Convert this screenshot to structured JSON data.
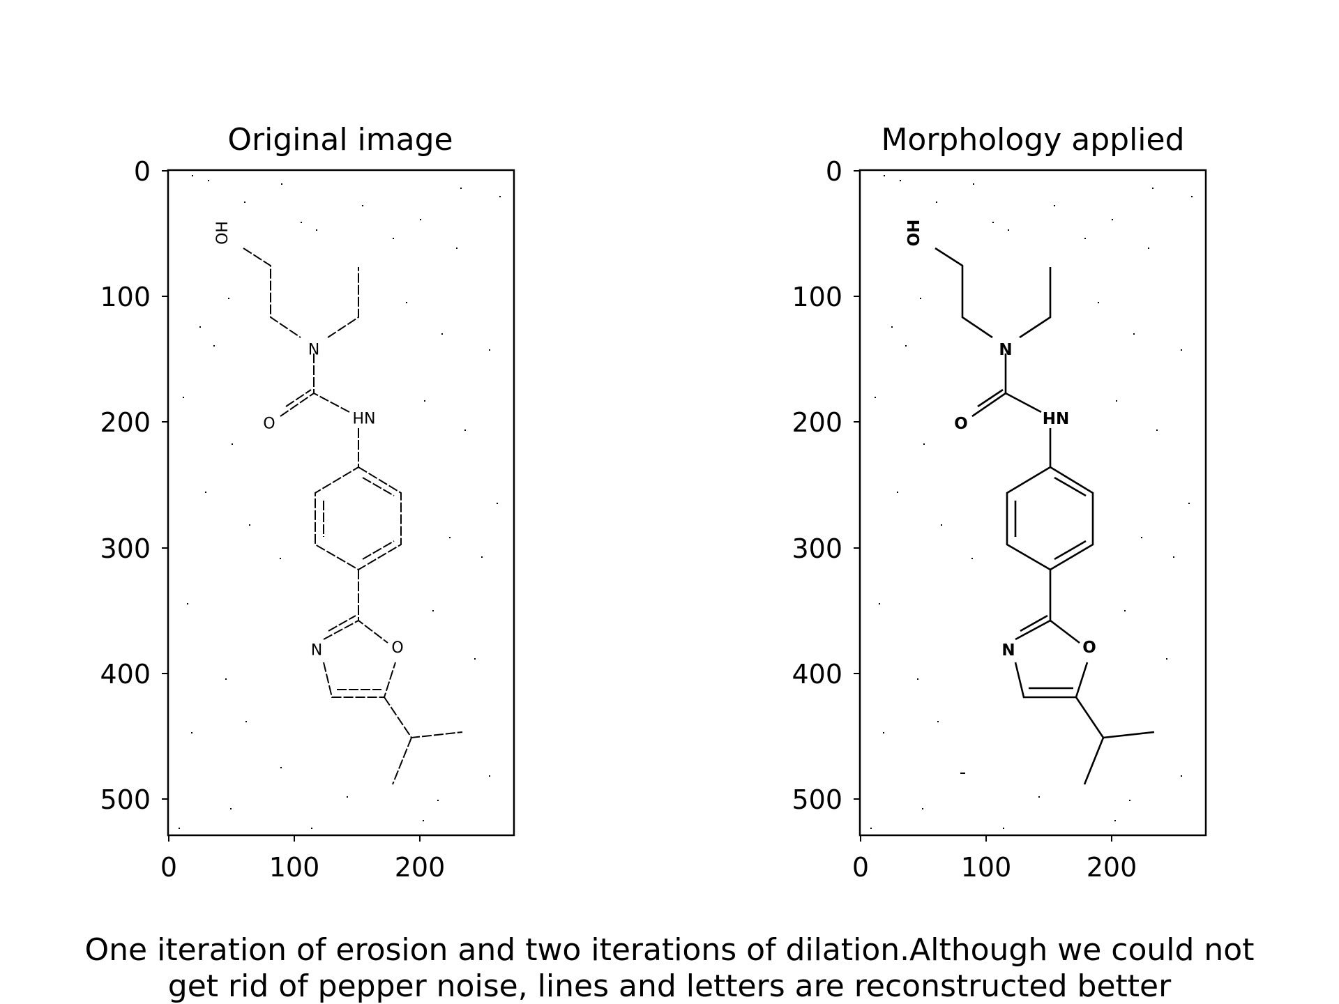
{
  "figure": {
    "panels": [
      {
        "title": "Original image",
        "x_ticks": [
          "0",
          "100",
          "200"
        ],
        "y_ticks": [
          "0",
          "100",
          "200",
          "300",
          "400",
          "500"
        ],
        "labels": {
          "oh": "OH",
          "n1": "N",
          "o1": "O",
          "nh": "NH",
          "n2": "N",
          "o2": "O"
        }
      },
      {
        "title": "Morphology applied",
        "x_ticks": [
          "0",
          "100",
          "200"
        ],
        "y_ticks": [
          "0",
          "100",
          "200",
          "300",
          "400",
          "500"
        ],
        "labels": {
          "oh": "OH",
          "n1": "N",
          "o1": "O",
          "nh": "NH",
          "n2": "N",
          "o2": "O"
        }
      }
    ],
    "caption_lines": [
      "One iteration of erosion and two iterations of dilation.Although we could not",
      "get rid of pepper noise, lines and letters are reconstructed better"
    ],
    "image_size": {
      "width": 275,
      "height": 530
    }
  }
}
